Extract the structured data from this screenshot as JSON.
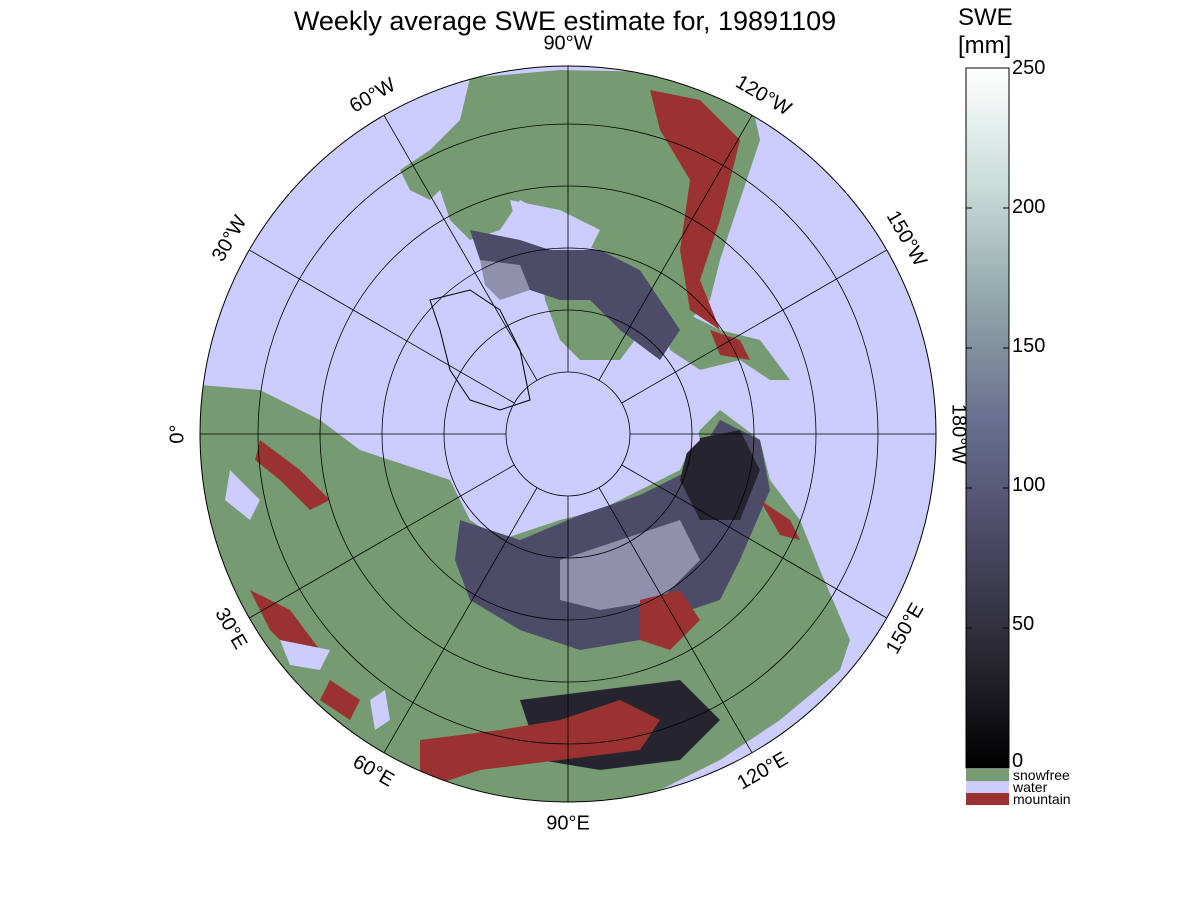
{
  "title": "Weekly average SWE estimate for, 19891109",
  "colorbar": {
    "label_line1": "SWE",
    "label_line2": "[mm]",
    "ticks": [
      "250",
      "200",
      "150",
      "100",
      "50",
      "0"
    ],
    "tick_values": [
      250,
      200,
      150,
      100,
      50,
      0
    ],
    "range": [
      0,
      250
    ],
    "gradient": [
      "#000000",
      "#2c2a34",
      "#4a4a66",
      "#6b7090",
      "#8fa4a8",
      "#c8dcd8",
      "#ffffff"
    ]
  },
  "legend": [
    {
      "label": "snowfree",
      "color": "#769b72"
    },
    {
      "label": "water",
      "color": "#ccccff"
    },
    {
      "label": "mountain",
      "color": "#9b3232"
    }
  ],
  "map": {
    "projection": "polar stereographic (north pole)",
    "longitude_labels": [
      {
        "text": "90°W",
        "deg": 90
      },
      {
        "text": "120°W",
        "deg": 60
      },
      {
        "text": "150°W",
        "deg": 30
      },
      {
        "text": "180°W",
        "deg": 0
      },
      {
        "text": "150°E",
        "deg": -30
      },
      {
        "text": "120°E",
        "deg": -60
      },
      {
        "text": "90°E",
        "deg": -90
      },
      {
        "text": "60°E",
        "deg": -120
      },
      {
        "text": "30°E",
        "deg": -150
      },
      {
        "text": "0°",
        "deg": 180
      },
      {
        "text": "30°W",
        "deg": 150
      },
      {
        "text": "60°W",
        "deg": 120
      }
    ],
    "colors": {
      "water": "#ccccff",
      "land": "#769b72",
      "mountain": "#9b3232",
      "snow_dark": "#26242e",
      "snow_mid": "#4c4c68",
      "snow_light": "#8e90ac",
      "grid": "#000000"
    }
  }
}
